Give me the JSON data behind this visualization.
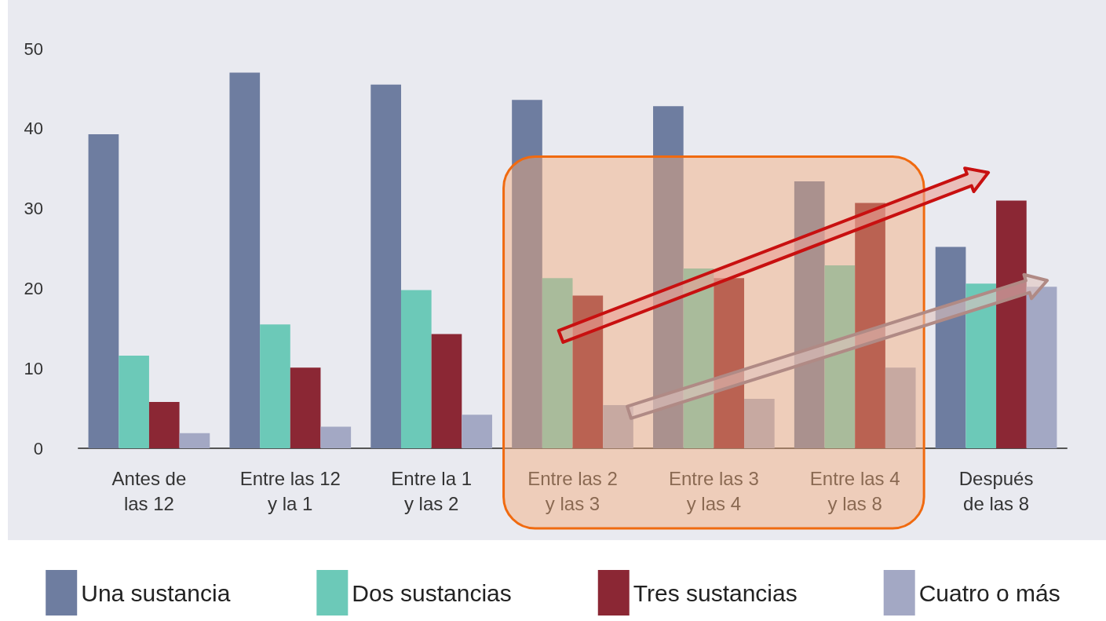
{
  "chart_data": {
    "type": "bar",
    "categories": [
      "Antes de\nlas 12",
      "Entre las 12\ny la 1",
      "Entre la 1\ny las 2",
      "Entre las 2\ny las 3",
      "Entre las 3\ny las 4",
      "Entre las 4\ny las 8",
      "Después\nde las 8"
    ],
    "series": [
      {
        "name": "Una sustancia",
        "color": "#6e7da0",
        "values": [
          39.3,
          47,
          45.5,
          43.6,
          42.8,
          33.4,
          25.2
        ]
      },
      {
        "name": "Dos sustancias",
        "color": "#6cc9b8",
        "values": [
          11.6,
          15.5,
          19.8,
          21.3,
          22.5,
          22.9,
          20.6
        ]
      },
      {
        "name": "Tres sustancias",
        "color": "#8b2734",
        "values": [
          5.8,
          10.1,
          14.3,
          19.1,
          21.3,
          30.7,
          31
        ]
      },
      {
        "name": "Cuatro o más",
        "color": "#a3a8c4",
        "values": [
          1.9,
          2.7,
          4.2,
          5.4,
          6.2,
          10.1,
          20.2
        ]
      }
    ],
    "ylim": [
      0,
      50
    ],
    "yticks": [
      0,
      10,
      20,
      30,
      40,
      50
    ],
    "grid": false,
    "legend": "bottom"
  }
}
